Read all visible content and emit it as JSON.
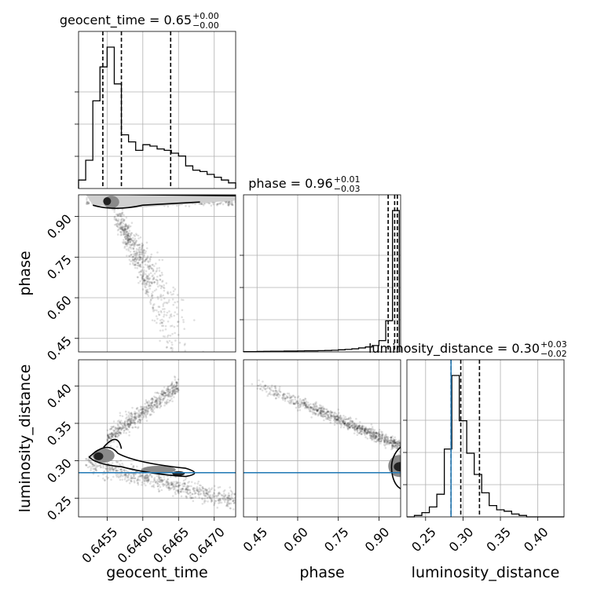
{
  "chart_data": {
    "type": "corner",
    "parameters": [
      "geocent_time",
      "phase",
      "luminosity_distance"
    ],
    "axis_labels": {
      "geocent_time": "geocent_time",
      "phase": "phase",
      "luminosity_distance": "luminosity_distance"
    },
    "ranges": {
      "geocent_time": [
        0.6451,
        0.6473
      ],
      "phase": [
        0.4,
        0.98
      ],
      "luminosity_distance": [
        0.225,
        0.435
      ]
    },
    "ticks": {
      "geocent_time": {
        "values": [
          0.6455,
          0.646,
          0.6465,
          0.647
        ],
        "labels": [
          "0.6455",
          "0.6460",
          "0.6465",
          "0.6470"
        ]
      },
      "phase": {
        "values": [
          0.45,
          0.6,
          0.75,
          0.9
        ],
        "labels": [
          "0.45",
          "0.60",
          "0.75",
          "0.90"
        ]
      },
      "luminosity_distance": {
        "values": [
          0.25,
          0.3,
          0.35,
          0.4
        ],
        "labels": [
          "0.25",
          "0.30",
          "0.35",
          "0.40"
        ]
      }
    },
    "truths": {
      "luminosity_distance": 0.284
    },
    "titles": [
      {
        "param": "geocent_time",
        "prefix": "geocent_time = 0.65",
        "plus": "+0.00",
        "minus": "−0.00"
      },
      {
        "param": "phase",
        "prefix": "phase = 0.96",
        "plus": "+0.01",
        "minus": "−0.03"
      },
      {
        "param": "luminosity_distance",
        "prefix": "luminosity_distance = 0.30",
        "plus": "+0.03",
        "minus": "−0.02"
      }
    ],
    "histograms": {
      "geocent_time": {
        "edges": [
          0.6451,
          0.6452,
          0.6453,
          0.6454,
          0.6455,
          0.6456,
          0.6457,
          0.6458,
          0.6459,
          0.646,
          0.6461,
          0.6462,
          0.6463,
          0.6464,
          0.6465,
          0.6466,
          0.6467,
          0.6468,
          0.6469,
          0.647,
          0.6471,
          0.6472,
          0.6473
        ],
        "counts": [
          0.06,
          0.2,
          0.62,
          0.86,
          1.0,
          0.74,
          0.38,
          0.33,
          0.27,
          0.31,
          0.3,
          0.28,
          0.27,
          0.25,
          0.23,
          0.16,
          0.13,
          0.12,
          0.1,
          0.08,
          0.06,
          0.04
        ],
        "quantiles": [
          0.64544,
          0.6457,
          0.64639
        ]
      },
      "phase": {
        "edges": [
          0.4,
          0.425,
          0.45,
          0.475,
          0.5,
          0.525,
          0.55,
          0.575,
          0.6,
          0.625,
          0.65,
          0.675,
          0.7,
          0.725,
          0.75,
          0.775,
          0.8,
          0.825,
          0.85,
          0.875,
          0.9,
          0.925,
          0.95,
          0.975
        ],
        "counts": [
          0.002,
          0.002,
          0.003,
          0.004,
          0.005,
          0.005,
          0.006,
          0.006,
          0.007,
          0.008,
          0.008,
          0.009,
          0.01,
          0.012,
          0.015,
          0.018,
          0.022,
          0.028,
          0.035,
          0.045,
          0.08,
          0.22,
          1.0
        ],
        "quantiles": [
          0.934,
          0.958,
          0.968
        ]
      },
      "luminosity_distance": {
        "edges": [
          0.225,
          0.235,
          0.245,
          0.255,
          0.265,
          0.275,
          0.285,
          0.295,
          0.305,
          0.315,
          0.325,
          0.335,
          0.345,
          0.355,
          0.365,
          0.375,
          0.385,
          0.395,
          0.405,
          0.415,
          0.425,
          0.435
        ],
        "counts": [
          0.0,
          0.01,
          0.03,
          0.07,
          0.16,
          0.48,
          1.0,
          0.68,
          0.45,
          0.3,
          0.17,
          0.08,
          0.05,
          0.04,
          0.02,
          0.01,
          0.0,
          0.0,
          0.0,
          0.0,
          0.0
        ],
        "quantiles": [
          0.284,
          0.297,
          0.322
        ]
      }
    },
    "grid": true
  }
}
